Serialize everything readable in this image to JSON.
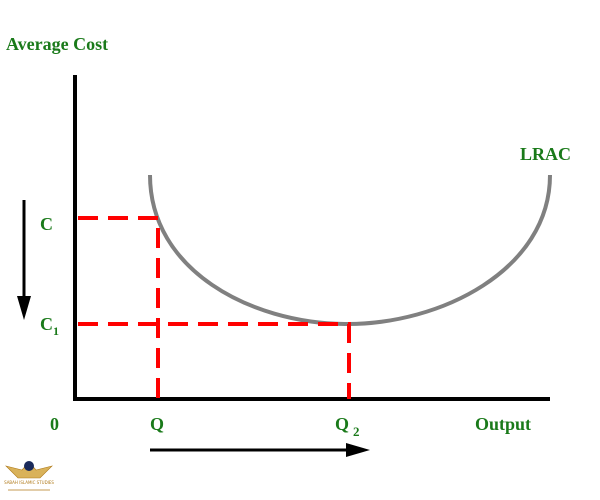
{
  "chart_data": {
    "type": "line",
    "ylabel": "Average Cost",
    "xlabel": "Output",
    "origin_label": "0",
    "curve_label": "LRAC",
    "y_ticks": [
      {
        "label": "C",
        "sub": ""
      },
      {
        "label": "C",
        "sub": "1"
      }
    ],
    "x_ticks": [
      {
        "label": "Q",
        "sub": ""
      },
      {
        "label": "Q",
        "sub": "2"
      }
    ],
    "series": [
      {
        "name": "LRAC",
        "x": [
          0.8,
          1.2,
          1.6,
          2.0,
          2.4,
          2.8,
          3.2,
          3.6,
          4.0,
          4.4,
          4.8,
          5.2
        ],
        "y": [
          2.4,
          1.95,
          1.55,
          1.25,
          1.08,
          1.0,
          1.02,
          1.1,
          1.3,
          1.6,
          2.0,
          2.4
        ]
      }
    ],
    "guides": [
      {
        "from_y": "C",
        "to_x": "Q"
      },
      {
        "from_y": "C1",
        "to_x": "Q2"
      }
    ],
    "arrows": [
      "cost decreases",
      "output increases"
    ],
    "colors": {
      "axis": "#000000",
      "curve": "#808080",
      "guide": "#ff0000",
      "text": "#1a7a1a"
    }
  },
  "watermark": {
    "text": "SABAH ISLAMIC STUDIES"
  }
}
